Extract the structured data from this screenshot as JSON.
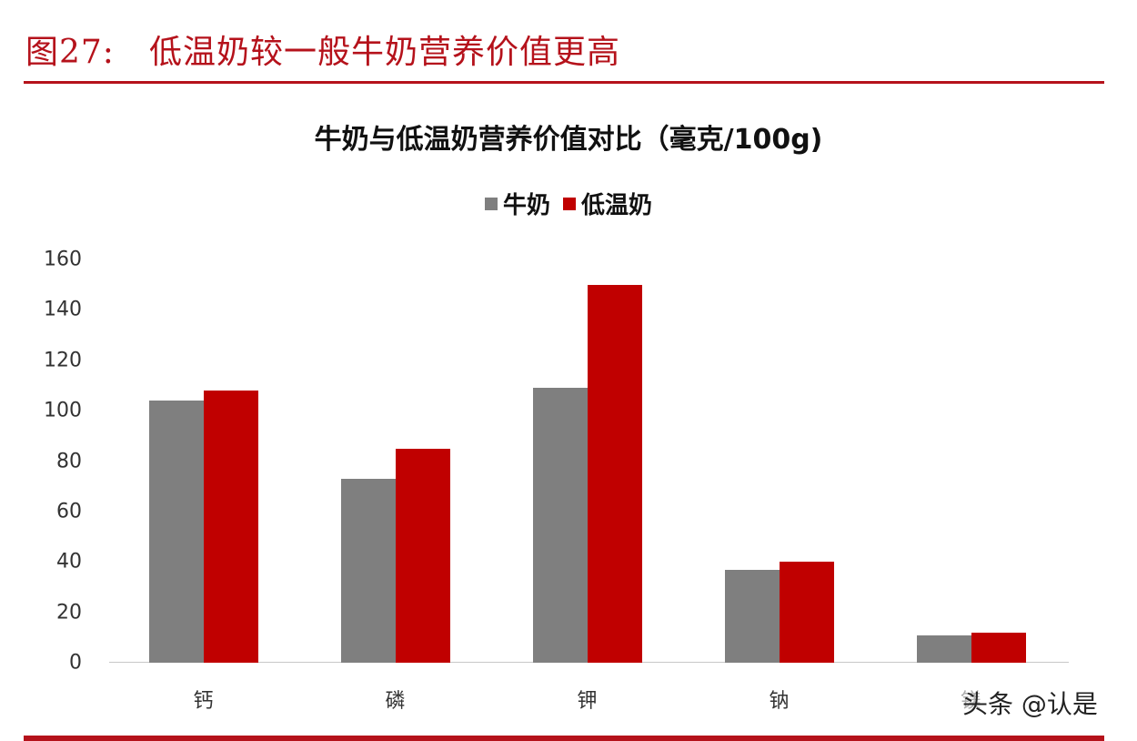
{
  "figure": {
    "number": "图27:",
    "caption": "低温奶较一般牛奶营养价值更高"
  },
  "colors": {
    "accent": "#b5121b",
    "series_milk": "#7f7f7f",
    "series_low_temp_milk": "#c00000"
  },
  "watermark": "头条 @认是",
  "chart_data": {
    "type": "bar",
    "title": "牛奶与低温奶营养价值对比（毫克/100g)",
    "categories": [
      "钙",
      "磷",
      "钾",
      "钠",
      "镁"
    ],
    "series": [
      {
        "name": "牛奶",
        "color": "#7f7f7f",
        "values": [
          104,
          73,
          109,
          37,
          11
        ]
      },
      {
        "name": "低温奶",
        "color": "#c00000",
        "values": [
          108,
          85,
          150,
          40,
          12
        ]
      }
    ],
    "xlabel": "",
    "ylabel": "",
    "ylim": [
      0,
      160
    ],
    "yticks": [
      "0",
      "20",
      "40",
      "60",
      "80",
      "100",
      "120",
      "140",
      "160"
    ],
    "grid": false,
    "legend_position": "top"
  }
}
